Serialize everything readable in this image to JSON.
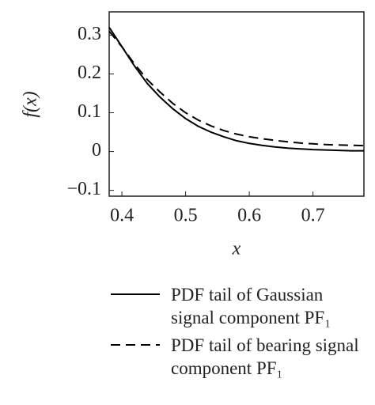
{
  "chart_data": {
    "type": "line",
    "x_label": "x",
    "y_label": "f(x)",
    "x": [
      0.38,
      0.4,
      0.42,
      0.44,
      0.46,
      0.48,
      0.5,
      0.52,
      0.54,
      0.56,
      0.58,
      0.6,
      0.62,
      0.64,
      0.66,
      0.68,
      0.7,
      0.72,
      0.74,
      0.76,
      0.78
    ],
    "series": [
      {
        "name": "PDF tail of Gaussian signal component PF₁",
        "color": "#000000",
        "dash": "solid",
        "values": [
          0.32,
          0.27,
          0.22,
          0.175,
          0.14,
          0.11,
          0.085,
          0.065,
          0.05,
          0.038,
          0.028,
          0.021,
          0.016,
          0.012,
          0.009,
          0.007,
          0.005,
          0.004,
          0.003,
          0.002,
          0.002
        ]
      },
      {
        "name": "PDF tail of bearing signal component PF₁",
        "color": "#000000",
        "dash": "dashed",
        "values": [
          0.31,
          0.27,
          0.225,
          0.185,
          0.153,
          0.124,
          0.1,
          0.081,
          0.066,
          0.054,
          0.045,
          0.038,
          0.033,
          0.029,
          0.025,
          0.022,
          0.02,
          0.018,
          0.017,
          0.016,
          0.015
        ]
      }
    ],
    "xlim": [
      0.38,
      0.78
    ],
    "ylim": [
      -0.115,
      0.36
    ],
    "xticks": [
      0.4,
      0.5,
      0.6,
      0.7
    ],
    "yticks": [
      {
        "value": -0.1,
        "label": "−0.1"
      },
      0,
      0.1,
      0.2,
      0.3
    ],
    "grid": false
  }
}
